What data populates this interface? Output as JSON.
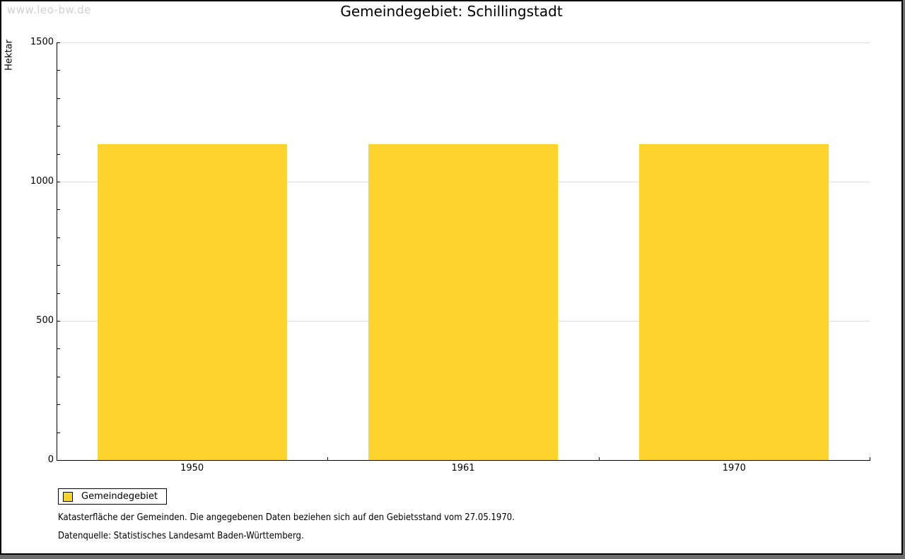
{
  "watermark": "www.leo-bw.de",
  "title": "Gemeindegebiet: Schillingstadt",
  "chart_data": {
    "type": "bar",
    "title": "Gemeindegebiet: Schillingstadt",
    "categories": [
      "1950",
      "1961",
      "1970"
    ],
    "series": [
      {
        "name": "Gemeindegebiet",
        "values": [
          1135,
          1135,
          1135
        ]
      }
    ],
    "xlabel": "",
    "ylabel": "Hektar",
    "ylim": [
      0,
      1500
    ],
    "y_major_ticks": [
      0,
      500,
      1000,
      1500
    ],
    "y_minor_step": 100,
    "grid": "horizontal-major-only",
    "legend_position": "bottom-left",
    "bar_color": "#fcd42d"
  },
  "legend": {
    "items": [
      {
        "label": "Gemeindegebiet",
        "color": "#fcd42d"
      }
    ]
  },
  "footnotes": [
    "Katasterfläche der Gemeinden. Die angegebenen Daten beziehen sich auf den Gebietsstand vom 27.05.1970.",
    "Datenquelle: Statistisches Landesamt Baden-Württemberg."
  ],
  "colors": {
    "bar": "#fcd42d",
    "grid": "#dcdcdc",
    "axis": "#000000",
    "watermark": "#d0d0d0",
    "background": "#ffffff"
  }
}
